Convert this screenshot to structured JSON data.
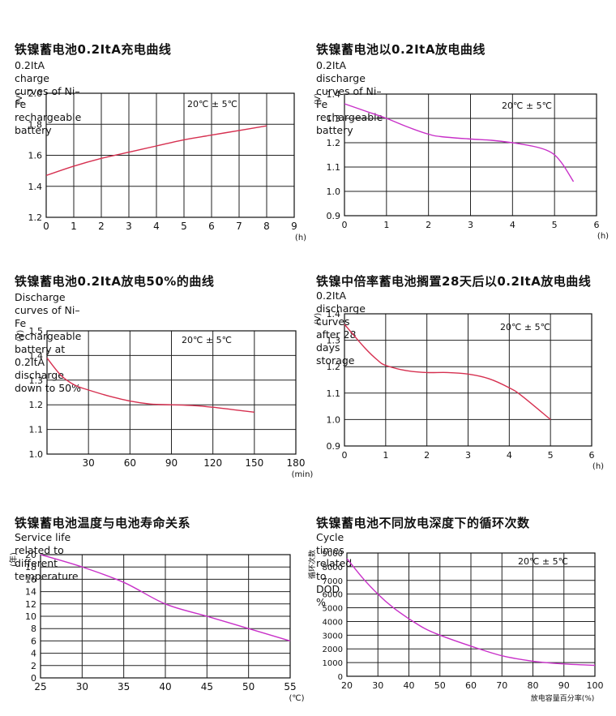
{
  "charts": [
    {
      "title_zh": "铁镍蓄电池0.2ItA充电曲线",
      "title_en": "0.2ItA charge curves of Ni–Fe rechargeable battery",
      "condition": "20℃ ± 5℃",
      "chart_data": {
        "type": "line",
        "x": [
          0,
          1,
          2,
          3,
          4,
          5,
          6,
          7,
          8
        ],
        "series": [
          {
            "values": [
              1.47,
              1.53,
              1.58,
              1.62,
              1.66,
              1.7,
              1.73,
              1.76,
              1.79
            ]
          }
        ],
        "xlabel": "(h)",
        "ylabel": "(V)",
        "xlim": [
          0,
          9
        ],
        "ylim": [
          1.2,
          2.0
        ],
        "x_ticks": [
          "0",
          "1",
          "2",
          "3",
          "4",
          "5",
          "6",
          "7",
          "8",
          "9"
        ],
        "y_ticks": [
          "1.2",
          "1.4",
          "1.6",
          "1.8",
          "2.0"
        ],
        "grid": true,
        "color": "#d63050"
      }
    },
    {
      "title_zh": "铁镍蓄电池以0.2ItA放电曲线",
      "title_en": "0.2ItA discharge curves of Ni–Fe rechargeable battery",
      "condition": "20℃ ± 5℃",
      "chart_data": {
        "type": "line",
        "x": [
          0,
          0.5,
          1,
          1.5,
          2,
          2.3,
          3,
          3.5,
          4,
          4.5,
          4.8,
          5,
          5.2,
          5.45
        ],
        "series": [
          {
            "values": [
              1.36,
              1.33,
              1.3,
              1.265,
              1.235,
              1.225,
              1.215,
              1.21,
              1.2,
              1.185,
              1.17,
              1.15,
              1.11,
              1.04
            ]
          }
        ],
        "xlabel": "(h)",
        "ylabel": "(V)",
        "xlim": [
          0,
          6
        ],
        "ylim": [
          0.9,
          1.4
        ],
        "x_ticks": [
          "0",
          "1",
          "2",
          "3",
          "4",
          "5",
          "6"
        ],
        "y_ticks": [
          "0.9",
          "1.0",
          "1.1",
          "1.2",
          "1.3",
          "1.4"
        ],
        "grid": true,
        "color": "#c830c8"
      }
    },
    {
      "title_zh": "铁镍蓄电池0.2ItA放电50%的曲线",
      "title_en": "Discharge curves of Ni–Fe rechargeable battery at 0.2ItA\ndischarge down to 50%",
      "condition": "20℃ ± 5℃",
      "chart_data": {
        "type": "line",
        "x": [
          0,
          10,
          20,
          30,
          45,
          60,
          75,
          90,
          105,
          120,
          135,
          150
        ],
        "series": [
          {
            "values": [
              1.39,
              1.32,
              1.28,
              1.26,
              1.235,
              1.215,
              1.203,
              1.2,
              1.197,
              1.19,
              1.18,
              1.17
            ]
          }
        ],
        "xlabel": "(min)",
        "ylabel": "(V)",
        "xlim": [
          0,
          180
        ],
        "ylim": [
          1.0,
          1.5
        ],
        "x_ticks": [
          "30",
          "60",
          "90",
          "120",
          "150",
          "180"
        ],
        "y_ticks": [
          "1.0",
          "1.1",
          "1.2",
          "1.3",
          "1.4",
          "1.5"
        ],
        "grid": true,
        "color": "#d63050"
      }
    },
    {
      "title_zh": "铁镍中倍率蓄电池搁置28天后以0.2ItA放电曲线",
      "title_en": "0.2ItA discharge curves after 28 days storage",
      "condition": "20℃ ± 5℃",
      "chart_data": {
        "type": "line",
        "x": [
          0,
          0.5,
          0.8,
          1,
          1.5,
          2,
          2.5,
          3,
          3.5,
          4,
          4.3,
          5
        ],
        "series": [
          {
            "values": [
              1.36,
              1.27,
              1.225,
              1.205,
              1.185,
              1.178,
              1.178,
              1.172,
              1.155,
              1.12,
              1.09,
              1.0
            ]
          }
        ],
        "xlabel": "(h)",
        "ylabel": "(V)",
        "xlim": [
          0,
          6
        ],
        "ylim": [
          0.9,
          1.4
        ],
        "x_ticks": [
          "0",
          "1",
          "2",
          "3",
          "4",
          "5",
          "6"
        ],
        "y_ticks": [
          "0.9",
          "1.0",
          "1.1",
          "1.2",
          "1.3",
          "1.4"
        ],
        "grid": true,
        "color": "#d63050"
      }
    },
    {
      "title_zh": "铁镍蓄电池温度与电池寿命关系",
      "title_en": "Service life related to different temperature",
      "condition": "",
      "chart_data": {
        "type": "line",
        "x": [
          25,
          30,
          35,
          40,
          45,
          50,
          55
        ],
        "series": [
          {
            "values": [
              20,
              18,
              15.5,
              12,
              10,
              8,
              6
            ]
          }
        ],
        "xlabel": "(℃)",
        "ylabel": "(年)",
        "xlim": [
          25,
          55
        ],
        "ylim": [
          0,
          20
        ],
        "x_ticks": [
          "25",
          "30",
          "35",
          "40",
          "45",
          "50",
          "55"
        ],
        "y_ticks": [
          "0",
          "2",
          "4",
          "6",
          "8",
          "10",
          "12",
          "14",
          "16",
          "18",
          "20"
        ],
        "grid": true,
        "color": "#c830c8"
      }
    },
    {
      "title_zh": "铁镍蓄电池不同放电深度下的循环次数",
      "title_en": "Cycle times related to DOD %",
      "condition": "20℃ ± 5℃",
      "chart_data": {
        "type": "line",
        "x": [
          20,
          25,
          30,
          35,
          40,
          45,
          50,
          60,
          70,
          80,
          90,
          100
        ],
        "series": [
          {
            "values": [
              8600,
              7200,
              6000,
              5000,
              4200,
              3500,
              3000,
              2200,
              1500,
              1100,
              900,
              800
            ]
          }
        ],
        "xlabel": "放电容量百分率(%)",
        "ylabel": "循环次数",
        "xlim": [
          20,
          100
        ],
        "ylim": [
          0,
          9000
        ],
        "x_ticks": [
          "20",
          "30",
          "40",
          "50",
          "60",
          "70",
          "80",
          "90",
          "100"
        ],
        "y_ticks": [
          "0",
          "1000",
          "2000",
          "3000",
          "4000",
          "5000",
          "6000",
          "7000",
          "8000",
          "9000"
        ],
        "grid": true,
        "color": "#c830c8"
      }
    }
  ]
}
